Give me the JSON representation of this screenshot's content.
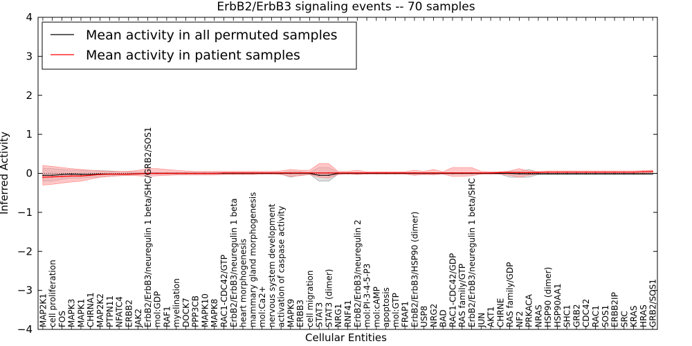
{
  "chart_data": {
    "type": "line",
    "title": "ErbB2/ErbB3 signaling events -- 70 samples",
    "xlabel": "Cellular Entities",
    "ylabel": "Inferred Activity",
    "ylim": [
      -4,
      4
    ],
    "yticks": [
      "4",
      "3",
      "2",
      "1",
      "0",
      "−1",
      "−2",
      "−3",
      "−4"
    ],
    "ytick_values": [
      4,
      3,
      2,
      1,
      0,
      -1,
      -2,
      -3,
      -4
    ],
    "legend": {
      "position": "top-left",
      "entries": [
        {
          "label": "Mean activity in all permuted samples",
          "color": "#000000"
        },
        {
          "label": "Mean activity in patient samples",
          "color": "#ff0000"
        }
      ]
    },
    "categories": [
      "MAP2K1",
      "cell proliferation",
      "FOS",
      "MAPK3",
      "MAPK1",
      "CHRNA1",
      "MAP2K2",
      "PTPN11",
      "NFATC4",
      "ERBB2",
      "JAK2",
      "ErbB2/ErbB3/neuregulin 1 beta/SHC/GRB2/SOS1",
      "mol:GDP",
      "RAF1",
      "myelination",
      "DOCK7",
      "PPP3CB",
      "MAPK10",
      "MAPK8",
      "RAC1-CDC42/GTP",
      "ErbB2/ErbB3/neuregulin 1 beta",
      "heart morphogenesis",
      "mammary gland morphogenesis",
      "mol:Ca2+",
      "nervous system development",
      "activation of caspase activity",
      "MAPK9",
      "ERBB3",
      "cell migration",
      "STAT3",
      "STAT3 (dimer)",
      "NRG1",
      "RNF41",
      "ErbB2/ErbB3/neuregulin 2",
      "mol:PI-3-4-5-P3",
      "mol:cAMP",
      "apoptosis",
      "mol:GTP",
      "FRAP1",
      "ErbB2/ErbB3/HSP90 (dimer)",
      "USP8",
      "NRG2",
      "BAD",
      "RAC1-CDC42/GDP",
      "RAS family/GTP",
      "ErbB2/ErbB3/neuregulin 1 beta/SHC",
      "JUN",
      "AKT1",
      "CHRNE",
      "RAS family/GDP",
      "NF2",
      "PRKACA",
      "NRAS",
      "HSP90 (dimer)",
      "HSP90AA1",
      "SHC1",
      "GRB2",
      "CDC42",
      "RAC1",
      "SOS1",
      "ERBB2IP",
      "SRC",
      "KRAS",
      "HRAS",
      "GRB2/SOS1"
    ],
    "series": [
      {
        "name": "Mean activity in all permuted samples",
        "color": "#000000",
        "values": [
          -0.05,
          -0.05,
          -0.03,
          -0.02,
          -0.03,
          -0.03,
          -0.02,
          -0.02,
          -0.02,
          -0.02,
          -0.01,
          0,
          0,
          0,
          0,
          0,
          0,
          0,
          0,
          0,
          0,
          0,
          0,
          0,
          0,
          0,
          0,
          0,
          0,
          -0.05,
          -0.05,
          0,
          0,
          0,
          0,
          0,
          0,
          0,
          0,
          0,
          0,
          0,
          0,
          0,
          0,
          0,
          0,
          0,
          0,
          0,
          -0.01,
          -0.01,
          -0.01,
          -0.01,
          -0.01,
          -0.01,
          -0.01,
          -0.01,
          -0.01,
          -0.01,
          -0.01,
          -0.01,
          -0.01,
          -0.01,
          -0.01
        ],
        "lower": [
          -0.2,
          -0.2,
          -0.15,
          -0.12,
          -0.12,
          -0.1,
          -0.1,
          -0.08,
          -0.06,
          -0.05,
          -0.03,
          -0.02,
          -0.02,
          -0.02,
          -0.02,
          -0.02,
          -0.02,
          -0.02,
          -0.02,
          -0.02,
          -0.02,
          -0.02,
          -0.02,
          -0.02,
          -0.02,
          -0.02,
          -0.1,
          -0.05,
          -0.02,
          -0.2,
          -0.2,
          -0.02,
          -0.02,
          -0.02,
          -0.02,
          -0.02,
          -0.02,
          -0.02,
          -0.02,
          -0.02,
          -0.02,
          -0.02,
          -0.02,
          -0.02,
          -0.02,
          -0.02,
          -0.02,
          -0.02,
          -0.02,
          -0.1,
          -0.1,
          -0.1,
          -0.03,
          -0.03,
          -0.03,
          -0.03,
          -0.03,
          -0.03,
          -0.03,
          -0.03,
          -0.03,
          -0.03,
          -0.03,
          -0.03,
          -0.03
        ],
        "upper": [
          0.12,
          0.12,
          0.1,
          0.08,
          0.08,
          0.08,
          0.07,
          0.06,
          0.05,
          0.04,
          0.03,
          0.02,
          0.02,
          0.02,
          0.02,
          0.02,
          0.02,
          0.02,
          0.02,
          0.02,
          0.02,
          0.02,
          0.02,
          0.02,
          0.02,
          0.02,
          0.05,
          0.05,
          0.02,
          0.15,
          0.15,
          0.02,
          0.02,
          0.02,
          0.02,
          0.02,
          0.02,
          0.02,
          0.02,
          0.02,
          0.02,
          0.02,
          0.02,
          0.02,
          0.02,
          0.02,
          0.02,
          0.02,
          0.02,
          0.05,
          0.05,
          0.1,
          0.03,
          0.03,
          0.03,
          0.03,
          0.03,
          0.03,
          0.03,
          0.03,
          0.03,
          0.03,
          0.03,
          0.03,
          0.03
        ]
      },
      {
        "name": "Mean activity in patient samples",
        "color": "#ff0000",
        "values": [
          -0.1,
          -0.09,
          -0.08,
          -0.07,
          -0.07,
          -0.05,
          -0.03,
          -0.02,
          -0.02,
          -0.02,
          -0.01,
          0,
          0,
          0,
          0,
          0,
          0,
          0,
          0,
          0.01,
          0.01,
          0.01,
          0.01,
          0.01,
          0.01,
          0.01,
          0.01,
          0.01,
          0.01,
          0.01,
          0.01,
          0.01,
          0.01,
          0.01,
          0.01,
          0.01,
          0.01,
          0.01,
          0.01,
          0.01,
          0.01,
          0.01,
          0.01,
          0.01,
          0.01,
          0.01,
          0.01,
          0.01,
          0.02,
          0.02,
          0.02,
          0.02,
          0.02,
          0.03,
          0.03,
          0.03,
          0.03,
          0.03,
          0.03,
          0.03,
          0.03,
          0.03,
          0.03,
          0.04,
          0.05
        ],
        "lower": [
          -0.3,
          -0.28,
          -0.25,
          -0.22,
          -0.2,
          -0.15,
          -0.1,
          -0.08,
          -0.06,
          -0.05,
          -0.06,
          -0.08,
          -0.06,
          -0.05,
          -0.04,
          -0.04,
          -0.04,
          -0.04,
          -0.04,
          -0.03,
          -0.03,
          -0.03,
          -0.03,
          -0.02,
          -0.02,
          -0.03,
          -0.08,
          -0.06,
          -0.03,
          -0.1,
          -0.12,
          -0.03,
          -0.02,
          -0.03,
          -0.02,
          -0.02,
          -0.02,
          -0.02,
          -0.02,
          -0.05,
          -0.03,
          -0.04,
          -0.02,
          -0.08,
          -0.08,
          -0.06,
          -0.02,
          -0.02,
          -0.02,
          -0.05,
          -0.1,
          -0.05,
          -0.01,
          0,
          0,
          0,
          0,
          0,
          0,
          0,
          0,
          0,
          0,
          0,
          0.02
        ],
        "upper": [
          0.2,
          0.18,
          0.15,
          0.12,
          0.1,
          0.08,
          0.06,
          0.05,
          0.05,
          0.05,
          0.08,
          0.12,
          0.12,
          0.1,
          0.08,
          0.06,
          0.05,
          0.05,
          0.05,
          0.05,
          0.05,
          0.05,
          0.05,
          0.05,
          0.05,
          0.06,
          0.1,
          0.08,
          0.08,
          0.25,
          0.25,
          0.05,
          0.05,
          0.08,
          0.04,
          0.04,
          0.04,
          0.04,
          0.04,
          0.08,
          0.05,
          0.1,
          0.04,
          0.15,
          0.15,
          0.15,
          0.05,
          0.04,
          0.04,
          0.06,
          0.12,
          0.06,
          0.05,
          0.06,
          0.06,
          0.06,
          0.06,
          0.06,
          0.06,
          0.06,
          0.06,
          0.06,
          0.06,
          0.07,
          0.08
        ]
      }
    ]
  }
}
